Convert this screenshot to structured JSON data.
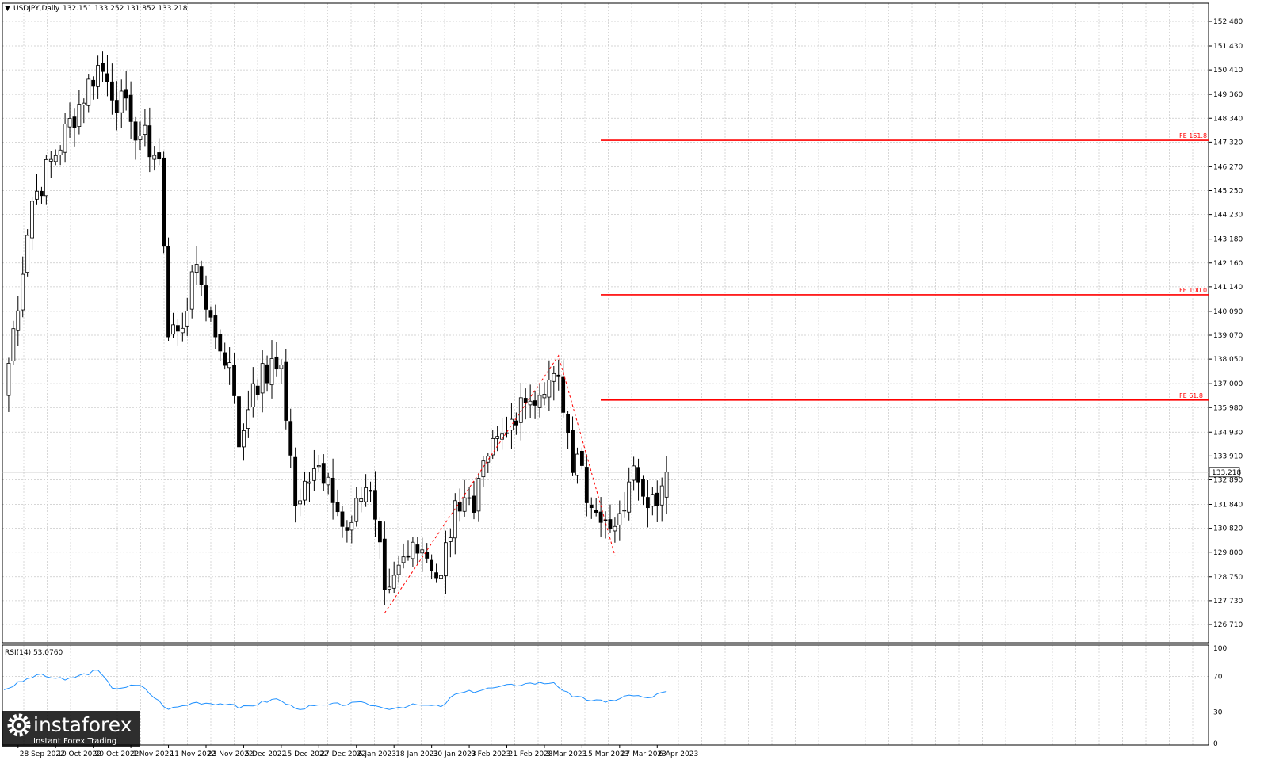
{
  "header": {
    "symbol_label": "USDJPY,Daily",
    "ohlc_label": "132.151 133.252 131.852 133.218",
    "dropdown_glyph": "▼"
  },
  "rsi": {
    "label": "RSI(14) 53.0760",
    "levels": [
      "100",
      "70",
      "30",
      "0"
    ],
    "color": "#1e90ff"
  },
  "current_price_label": "133.218",
  "colors": {
    "candle_up_fill": "#ffffff",
    "candle_down_fill": "#000000",
    "grid": "#c8c8c8",
    "fe_line": "#ff0000",
    "background": "#ffffff"
  },
  "chart_data": {
    "type": "candlestick",
    "ylim": [
      126.4,
      153.2
    ],
    "y_ticks": [
      "152.480",
      "151.430",
      "150.410",
      "149.360",
      "148.340",
      "147.320",
      "146.270",
      "145.250",
      "144.230",
      "143.180",
      "142.160",
      "141.140",
      "140.090",
      "139.070",
      "138.050",
      "137.000",
      "135.980",
      "134.930",
      "133.910",
      "132.890",
      "131.840",
      "130.820",
      "129.800",
      "128.750",
      "127.730",
      "126.710"
    ],
    "x_ticks": [
      "28 Sep 2022",
      "10 Oct 2022",
      "20 Oct 2022",
      "1 Nov 2022",
      "11 Nov 2022",
      "23 Nov 2022",
      "5 Dec 2022",
      "15 Dec 2022",
      "27 Dec 2022",
      "6 Jan 2023",
      "18 Jan 2023",
      "30 Jan 2023",
      "9 Feb 2023",
      "21 Feb 2023",
      "3 Mar 2023",
      "15 Mar 2023",
      "27 Mar 2023",
      "6 Apr 2023"
    ],
    "fib_levels": [
      {
        "label": "FE 161.8",
        "value": 147.4
      },
      {
        "label": "FE 100.0",
        "value": 140.8
      },
      {
        "label": "FE 61.8",
        "value": 136.3
      }
    ],
    "abc_pattern": [
      {
        "date": "16 Jan 2023",
        "price": 127.2
      },
      {
        "date": "8 Mar 2023",
        "price": 138.2
      },
      {
        "date": "24 Mar 2023",
        "price": 129.65
      }
    ],
    "anchor_points": [
      {
        "date": "23 Sep 2022",
        "price": 136.5
      },
      {
        "date": "3 Oct 2022",
        "price": 144.8
      },
      {
        "date": "21 Oct 2022",
        "price": 150.6
      },
      {
        "date": "1 Nov 2022",
        "price": 148.2
      },
      {
        "date": "9 Nov 2022",
        "price": 146.6
      },
      {
        "date": "11 Nov 2022",
        "price": 139.0
      },
      {
        "date": "17 Nov 2022",
        "price": 140.1
      },
      {
        "date": "21 Nov 2022",
        "price": 142.1
      },
      {
        "date": "25 Nov 2022",
        "price": 139.0
      },
      {
        "date": "30 Nov 2022",
        "price": 137.9
      },
      {
        "date": "2 Dec 2022",
        "price": 134.3
      },
      {
        "date": "7 Dec 2022",
        "price": 137.0
      },
      {
        "date": "15 Dec 2022",
        "price": 137.8
      },
      {
        "date": "20 Dec 2022",
        "price": 131.8
      },
      {
        "date": "23 Dec 2022",
        "price": 132.8
      },
      {
        "date": "27 Dec 2022",
        "price": 133.5
      },
      {
        "date": "29 Dec 2022",
        "price": 133.0
      },
      {
        "date": "3 Jan 2023",
        "price": 130.9
      },
      {
        "date": "6 Jan 2023",
        "price": 132.1
      },
      {
        "date": "11 Jan 2023",
        "price": 132.4
      },
      {
        "date": "16 Jan 2023",
        "price": 128.2
      },
      {
        "date": "20 Jan 2023",
        "price": 129.6
      },
      {
        "date": "26 Jan 2023",
        "price": 129.9
      },
      {
        "date": "1 Feb 2023",
        "price": 128.8
      },
      {
        "date": "6 Feb 2023",
        "price": 132.0
      },
      {
        "date": "10 Feb 2023",
        "price": 131.5
      },
      {
        "date": "15 Feb 2023",
        "price": 133.9
      },
      {
        "date": "21 Feb 2023",
        "price": 134.9
      },
      {
        "date": "24 Feb 2023",
        "price": 136.4
      },
      {
        "date": "2 Mar 2023",
        "price": 136.5
      },
      {
        "date": "8 Mar 2023",
        "price": 137.3
      },
      {
        "date": "10 Mar 2023",
        "price": 134.9
      },
      {
        "date": "13 Mar 2023",
        "price": 133.2
      },
      {
        "date": "15 Mar 2023",
        "price": 133.5
      },
      {
        "date": "17 Mar 2023",
        "price": 131.7
      },
      {
        "date": "20 Mar 2023",
        "price": 131.5
      },
      {
        "date": "23 Mar 2023",
        "price": 130.8
      },
      {
        "date": "24 Mar 2023",
        "price": 130.9
      },
      {
        "date": "29 Mar 2023",
        "price": 132.8
      },
      {
        "date": "31 Mar 2023",
        "price": 132.8
      },
      {
        "date": "4 Apr 2023",
        "price": 131.7
      },
      {
        "date": "6 Apr 2023",
        "price": 131.8
      },
      {
        "date": "10 Apr 2023",
        "price": 133.22
      }
    ],
    "rsi_anchor_points": [
      {
        "date": "23 Sep 2022",
        "value": 55
      },
      {
        "date": "4 Oct 2022",
        "value": 72
      },
      {
        "date": "12 Oct 2022",
        "value": 66
      },
      {
        "date": "21 Oct 2022",
        "value": 77
      },
      {
        "date": "26 Oct 2022",
        "value": 57
      },
      {
        "date": "3 Nov 2022",
        "value": 60
      },
      {
        "date": "11 Nov 2022",
        "value": 33
      },
      {
        "date": "21 Nov 2022",
        "value": 41
      },
      {
        "date": "30 Nov 2022",
        "value": 39
      },
      {
        "date": "2 Dec 2022",
        "value": 34
      },
      {
        "date": "14 Dec 2022",
        "value": 45
      },
      {
        "date": "20 Dec 2022",
        "value": 34
      },
      {
        "date": "29 Dec 2022",
        "value": 38
      },
      {
        "date": "10 Jan 2023",
        "value": 40
      },
      {
        "date": "16 Jan 2023",
        "value": 34
      },
      {
        "date": "25 Jan 2023",
        "value": 38
      },
      {
        "date": "1 Feb 2023",
        "value": 36
      },
      {
        "date": "6 Feb 2023",
        "value": 50
      },
      {
        "date": "17 Feb 2023",
        "value": 58
      },
      {
        "date": "27 Feb 2023",
        "value": 62
      },
      {
        "date": "7 Mar 2023",
        "value": 63
      },
      {
        "date": "13 Mar 2023",
        "value": 47
      },
      {
        "date": "22 Mar 2023",
        "value": 41
      },
      {
        "date": "29 Mar 2023",
        "value": 49
      },
      {
        "date": "4 Apr 2023",
        "value": 46
      },
      {
        "date": "10 Apr 2023",
        "value": 53.08
      }
    ]
  },
  "logo": {
    "name": "instaforex",
    "tagline": "Instant Forex Trading"
  }
}
